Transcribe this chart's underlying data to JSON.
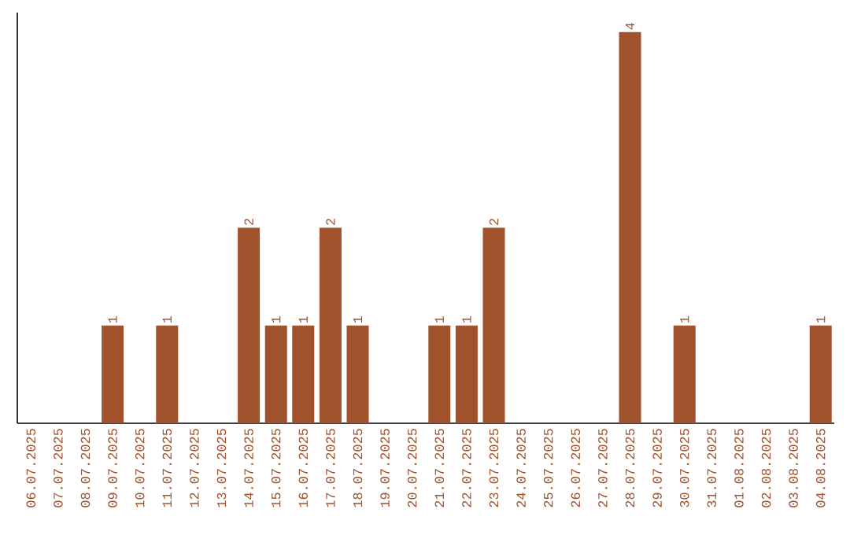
{
  "chart_data": {
    "type": "bar",
    "categories": [
      "06.07.2025",
      "07.07.2025",
      "08.07.2025",
      "09.07.2025",
      "10.07.2025",
      "11.07.2025",
      "12.07.2025",
      "13.07.2025",
      "14.07.2025",
      "15.07.2025",
      "16.07.2025",
      "17.07.2025",
      "18.07.2025",
      "19.07.2025",
      "20.07.2025",
      "21.07.2025",
      "22.07.2025",
      "23.07.2025",
      "24.07.2025",
      "25.07.2025",
      "26.07.2025",
      "27.07.2025",
      "28.07.2025",
      "29.07.2025",
      "30.07.2025",
      "31.07.2025",
      "01.08.2025",
      "02.08.2025",
      "03.08.2025",
      "04.08.2025"
    ],
    "values": [
      0,
      0,
      0,
      1,
      0,
      1,
      0,
      0,
      2,
      1,
      1,
      2,
      1,
      0,
      0,
      1,
      1,
      2,
      0,
      0,
      0,
      0,
      4,
      0,
      1,
      0,
      0,
      0,
      0,
      1
    ],
    "value_labels": [
      null,
      null,
      null,
      "1",
      null,
      "1",
      null,
      null,
      "2",
      "1",
      "1",
      "2",
      "1",
      null,
      null,
      "1",
      "1",
      "2",
      null,
      null,
      null,
      null,
      "4",
      null,
      "1",
      null,
      null,
      null,
      null,
      "1"
    ],
    "color": "#a0522d"
  }
}
